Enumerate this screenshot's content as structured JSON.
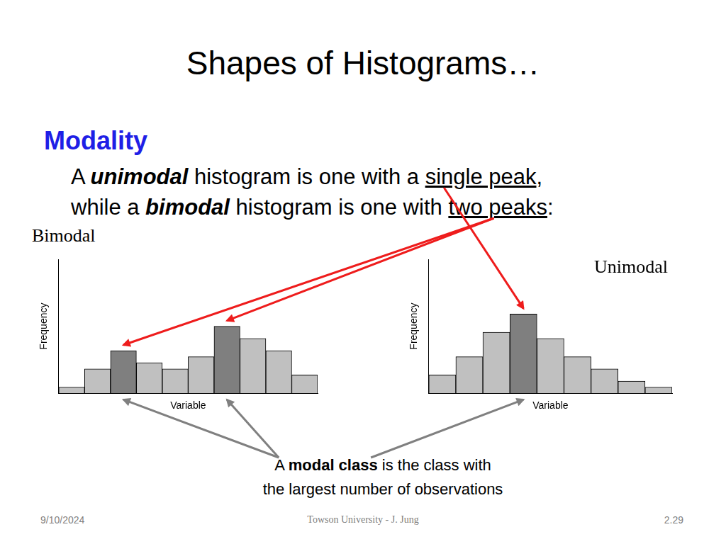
{
  "slide": {
    "title": "Shapes of Histograms…",
    "heading": "Modality",
    "body": [
      [
        {
          "text": "A ",
          "style": "plain"
        },
        {
          "text": "unimodal",
          "style": "bold-italic"
        },
        {
          "text": " histogram is one with a ",
          "style": "plain"
        },
        {
          "text": "single peak",
          "style": "underline"
        },
        {
          "text": ",",
          "style": "plain"
        }
      ],
      [
        {
          "text": "while a ",
          "style": "plain"
        },
        {
          "text": "bimodal",
          "style": "bold-italic"
        },
        {
          "text": " histogram is one with ",
          "style": "plain"
        },
        {
          "text": "two peaks",
          "style": "underline"
        },
        {
          "text": ":",
          "style": "plain"
        }
      ]
    ],
    "callout": [
      [
        {
          "text": "A ",
          "style": "plain"
        },
        {
          "text": "modal class",
          "style": "bold"
        },
        {
          "text": " is the class with",
          "style": "plain"
        }
      ],
      [
        {
          "text": "the largest number of observations",
          "style": "plain"
        }
      ]
    ],
    "footer": {
      "date": "9/10/2024",
      "source": "Towson University - J. Jung",
      "page": "2.29"
    }
  },
  "chart_data": [
    {
      "type": "histogram",
      "title": "Bimodal",
      "x_label": "Variable",
      "y_label": "Frequency",
      "categories": [
        null,
        null,
        null,
        null,
        null,
        null,
        null,
        null,
        null,
        null
      ],
      "values": [
        1,
        4,
        7,
        5,
        4,
        6,
        11,
        9,
        7,
        3
      ],
      "colors": [
        "#c0c0c0",
        "#c0c0c0",
        "#7f7f7f",
        "#c0c0c0",
        "#c0c0c0",
        "#c0c0c0",
        "#7f7f7f",
        "#c0c0c0",
        "#c0c0c0",
        "#c0c0c0"
      ],
      "ylim": [
        0,
        22
      ],
      "grid": false,
      "tick_labels": false
    },
    {
      "type": "histogram",
      "title": "Unimodal",
      "x_label": "Variable",
      "y_label": "Frequency",
      "categories": [
        null,
        null,
        null,
        null,
        null,
        null,
        null,
        null,
        null
      ],
      "values": [
        3,
        6,
        10,
        13,
        9,
        6,
        4,
        2,
        1
      ],
      "colors": [
        "#c0c0c0",
        "#c0c0c0",
        "#c0c0c0",
        "#7f7f7f",
        "#c0c0c0",
        "#c0c0c0",
        "#c0c0c0",
        "#c0c0c0",
        "#c0c0c0"
      ],
      "ylim": [
        0,
        22
      ],
      "grid": false,
      "tick_labels": false
    }
  ]
}
